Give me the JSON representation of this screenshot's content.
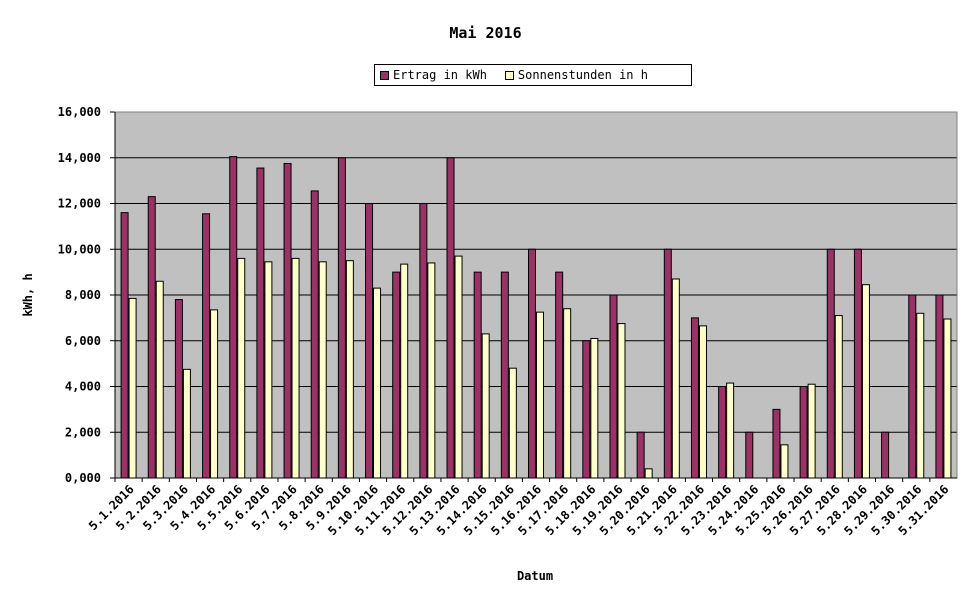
{
  "chart_data": {
    "type": "bar",
    "title": "Mai 2016",
    "xlabel": "Datum",
    "ylabel": "kWh, h",
    "ylim": [
      0,
      16
    ],
    "yticks": [
      "0,000",
      "2,000",
      "4,000",
      "6,000",
      "8,000",
      "10,000",
      "12,000",
      "14,000",
      "16,000"
    ],
    "grid": true,
    "legend_position": "top-center",
    "categories": [
      "5.1.2016",
      "5.2.2016",
      "5.3.2016",
      "5.4.2016",
      "5.5.2016",
      "5.6.2016",
      "5.7.2016",
      "5.8.2016",
      "5.9.2016",
      "5.10.2016",
      "5.11.2016",
      "5.12.2016",
      "5.13.2016",
      "5.14.2016",
      "5.15.2016",
      "5.16.2016",
      "5.17.2016",
      "5.18.2016",
      "5.19.2016",
      "5.20.2016",
      "5.21.2016",
      "5.22.2016",
      "5.23.2016",
      "5.24.2016",
      "5.25.2016",
      "5.26.2016",
      "5.27.2016",
      "5.28.2016",
      "5.29.2016",
      "5.30.2016",
      "5.31.2016"
    ],
    "series": [
      {
        "name": "Ertrag in kWh",
        "color": "#993366",
        "values": [
          11.6,
          12.3,
          7.8,
          11.55,
          14.05,
          13.55,
          13.75,
          12.55,
          14.0,
          12.0,
          9.0,
          12.0,
          14.0,
          9.0,
          9.0,
          10.0,
          9.0,
          6.0,
          8.0,
          2.0,
          10.0,
          7.0,
          4.0,
          2.0,
          3.0,
          4.0,
          10.0,
          10.0,
          2.0,
          8.0,
          8.0
        ]
      },
      {
        "name": "Sonnenstunden in h",
        "color": "#ffffcc",
        "values": [
          7.85,
          8.6,
          4.75,
          7.35,
          9.6,
          9.45,
          9.6,
          9.45,
          9.5,
          8.3,
          9.35,
          9.4,
          9.7,
          6.3,
          4.8,
          7.25,
          7.4,
          6.1,
          6.75,
          0.4,
          8.7,
          6.65,
          4.15,
          0,
          1.45,
          4.1,
          7.1,
          8.45,
          0,
          7.2,
          6.95
        ]
      }
    ],
    "plot_bg": "#c0c0c0"
  }
}
